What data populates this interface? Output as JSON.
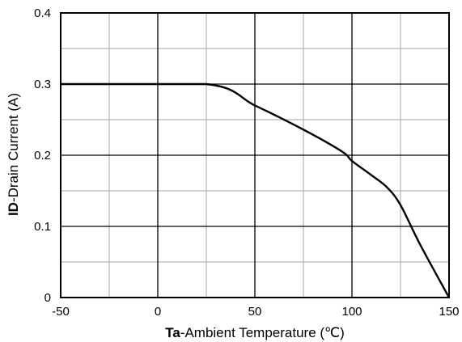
{
  "chart_data": {
    "type": "line",
    "xlabel_bold": "Ta",
    "xlabel_rest": "-Ambient Temperature (℃)",
    "ylabel_bold": "ID",
    "ylabel_rest": "-Drain Current (A)",
    "xlim": [
      -50,
      150
    ],
    "ylim": [
      0,
      0.4
    ],
    "x_ticks": [
      -50,
      0,
      50,
      100,
      150
    ],
    "x_tick_labels": [
      "-50",
      "0",
      "50",
      "100",
      "150"
    ],
    "y_ticks": [
      0,
      0.1,
      0.2,
      0.3,
      0.4
    ],
    "y_tick_labels": [
      "0",
      "0.1",
      "0.2",
      "0.3",
      "0.4"
    ],
    "x_minor_grid": [
      -25,
      25,
      75,
      125
    ],
    "y_minor_grid": [
      0.05,
      0.15,
      0.25,
      0.35
    ],
    "grid": true,
    "series": [
      {
        "color": "#000000",
        "x": [
          -50,
          25,
          50,
          75,
          95,
          100,
          110,
          118,
          125,
          135,
          150
        ],
        "y": [
          0.3,
          0.3,
          0.27,
          0.236,
          0.205,
          0.192,
          0.172,
          0.155,
          0.13,
          0.075,
          0.0
        ]
      }
    ]
  }
}
